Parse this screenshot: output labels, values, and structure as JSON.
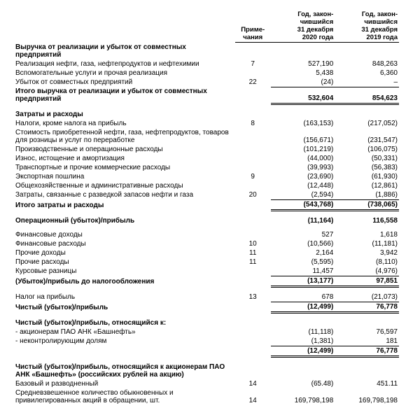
{
  "headers": {
    "note": "Приме-\nчания",
    "y2020": "Год, закон-\nчившийся\n31 декабря\n2020 года",
    "y2019": "Год, закон-\nчившийся\n31 декабря\n2019 года"
  },
  "rows": [
    {
      "label": "Выручка от реализации и убыток от совместных предприятий",
      "bold": true
    },
    {
      "label": "Реализация нефти, газа, нефтепродуктов и нефтехимии",
      "note": "7",
      "v1": "527,190",
      "v2": "848,263"
    },
    {
      "label": "Вспомогательные услуги и прочая реализация",
      "v1": "5,438",
      "v2": "6,360"
    },
    {
      "label": "Убыток от совместных предприятий",
      "note": "22",
      "v1": "(24)",
      "v2": "–"
    },
    {
      "label": "Итого выручка от реализации и убыток от совместных предприятий",
      "bold": true,
      "wrap": true,
      "v1": "532,604",
      "v2": "854,623",
      "total": "dbl"
    },
    {
      "gap": true
    },
    {
      "label": "Затраты и расходы",
      "bold": true
    },
    {
      "label": "Налоги, кроме налога на прибыль",
      "note": "8",
      "v1": "(163,153)",
      "v2": "(217,052)"
    },
    {
      "label": "Стоимость приобретенной нефти, газа, нефтепродуктов, товаров для розницы и услуг по переработке",
      "wrap": true,
      "v1": "(156,671)",
      "v2": "(231,547)"
    },
    {
      "label": "Производственные и операционные расходы",
      "v1": "(101,219)",
      "v2": "(106,075)"
    },
    {
      "label": "Износ, истощение и амортизация",
      "v1": "(44,000)",
      "v2": "(50,331)"
    },
    {
      "label": "Транспортные и прочие коммерческие расходы",
      "v1": "(39,993)",
      "v2": "(56,383)"
    },
    {
      "label": "Экспортная пошлина",
      "note": "9",
      "v1": "(23,690)",
      "v2": "(61,930)"
    },
    {
      "label": "Общехозяйственные и административные расходы",
      "v1": "(12,448)",
      "v2": "(12,861)"
    },
    {
      "label": "Затраты, связанные с разведкой запасов нефти и газа",
      "note": "20",
      "v1": "(2,594)",
      "v2": "(1,886)"
    },
    {
      "label": "Итого затраты и расходы",
      "bold": true,
      "v1": "(543,768)",
      "v2": "(738,065)",
      "total": "dbl"
    },
    {
      "gap": true
    },
    {
      "label": "Операционный (убыток)/прибыль",
      "bold": true,
      "v1": "(11,164)",
      "v2": "116,558"
    },
    {
      "gap": true
    },
    {
      "label": "Финансовые доходы",
      "v1": "527",
      "v2": "1,618"
    },
    {
      "label": "Финансовые расходы",
      "note": "10",
      "v1": "(10,566)",
      "v2": "(11,181)"
    },
    {
      "label": "Прочие доходы",
      "note": "11",
      "v1": "2,164",
      "v2": "3,942"
    },
    {
      "label": "Прочие расходы",
      "note": "11",
      "v1": "(5,595)",
      "v2": "(8,110)"
    },
    {
      "label": "Курсовые разницы",
      "v1": "11,457",
      "v2": "(4,976)"
    },
    {
      "label": "(Убыток)/прибыль до налогообложения",
      "bold": true,
      "v1": "(13,177)",
      "v2": "97,851",
      "total": "dbl"
    },
    {
      "gap": true
    },
    {
      "label": "Налог на прибыль",
      "note": "13",
      "v1": "678",
      "v2": "(21,073)"
    },
    {
      "label": "Чистый (убыток)/прибыль",
      "bold": true,
      "v1": "(12,499)",
      "v2": "76,778",
      "total": "dbl"
    },
    {
      "gap": true
    },
    {
      "label": "Чистый (убыток)/прибыль, относящийся к:",
      "bold": true
    },
    {
      "label": "- акционерам ПАО АНК «Башнефть»",
      "v1": "(11,118)",
      "v2": "76,597"
    },
    {
      "label": "- неконтролирующим долям",
      "v1": "(1,381)",
      "v2": "181"
    },
    {
      "label": "",
      "bold": true,
      "v1": "(12,499)",
      "v2": "76,778",
      "total": "dbl"
    },
    {
      "gap": true
    },
    {
      "label": "Чистый (убыток)/прибыль, относящийся к акционерам ПАО АНК «Башнефть» (российских рублей на акцию)",
      "bold": true,
      "wrap": true
    },
    {
      "label": "Базовый и разводненный",
      "note": "14",
      "v1": "(65.48)",
      "v2": "451.11"
    },
    {
      "label": "Средневзвешенное количество обыкновенных и привилегированных акций в обращении, шт.",
      "wrap": true,
      "note": "14",
      "v1": "169,798,198",
      "v2": "169,798,198"
    }
  ]
}
